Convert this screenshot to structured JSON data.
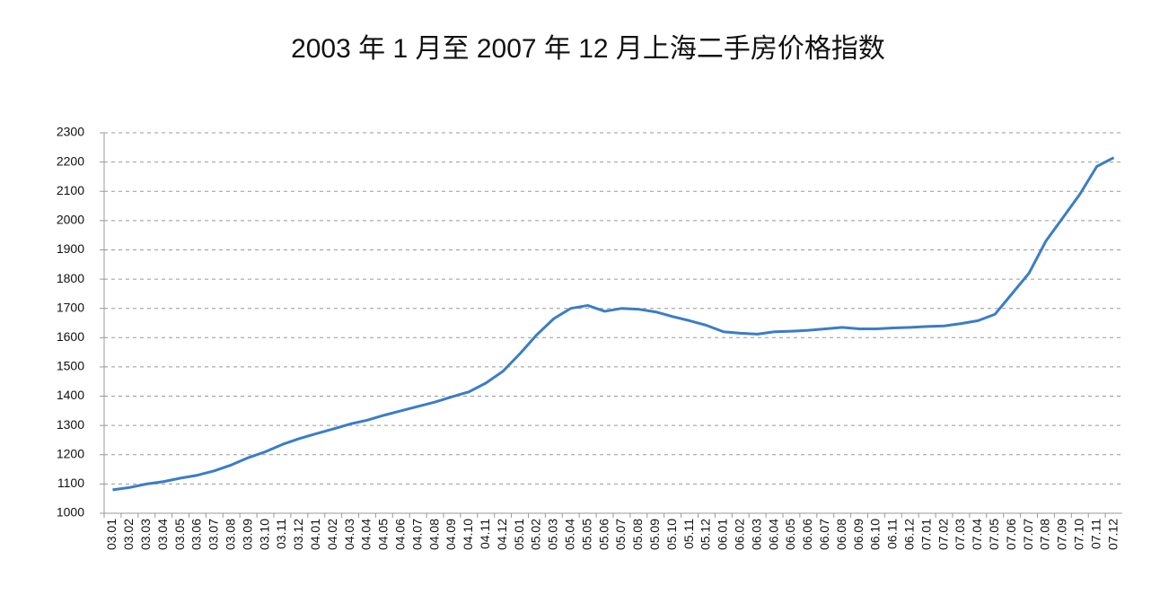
{
  "chart_data": {
    "type": "line",
    "title": "2003 年 1 月至 2007 年 12 月上海二手房价格指数",
    "categories": [
      "03.01",
      "03.02",
      "03.03",
      "03.04",
      "03.05",
      "03.06",
      "03.07",
      "03.08",
      "03.09",
      "03.10",
      "03.11",
      "03.12",
      "04.01",
      "04.02",
      "04.03",
      "04.04",
      "04.05",
      "04.06",
      "04.07",
      "04.08",
      "04.09",
      "04.10",
      "04.11",
      "04.12",
      "05.01",
      "05.02",
      "05.03",
      "05.04",
      "05.05",
      "05.06",
      "05.07",
      "05.08",
      "05.09",
      "05.10",
      "05.11",
      "05.12",
      "06.01",
      "06.02",
      "06.03",
      "06.04",
      "06.05",
      "06.06",
      "06.07",
      "06.08",
      "06.09",
      "06.10",
      "06.11",
      "06.12",
      "07.01",
      "07.02",
      "07.03",
      "07.04",
      "07.05",
      "07.06",
      "07.07",
      "07.08",
      "07.09",
      "07.10",
      "07.11",
      "07.12"
    ],
    "values": [
      1080,
      1088,
      1100,
      1108,
      1120,
      1130,
      1145,
      1165,
      1190,
      1210,
      1235,
      1255,
      1272,
      1288,
      1305,
      1318,
      1335,
      1350,
      1365,
      1380,
      1398,
      1415,
      1445,
      1485,
      1545,
      1610,
      1665,
      1700,
      1710,
      1690,
      1700,
      1697,
      1688,
      1672,
      1658,
      1642,
      1620,
      1615,
      1612,
      1620,
      1622,
      1625,
      1630,
      1635,
      1630,
      1630,
      1633,
      1635,
      1638,
      1640,
      1648,
      1658,
      1680,
      1750,
      1820,
      1930,
      2010,
      2090,
      2185,
      2215
    ],
    "color": "#3a7dc9",
    "ylim": [
      1000,
      2300
    ],
    "yticks": [
      1000,
      1100,
      1200,
      1300,
      1400,
      1500,
      1600,
      1700,
      1800,
      1900,
      2000,
      2100,
      2200,
      2300
    ],
    "grid": true
  }
}
